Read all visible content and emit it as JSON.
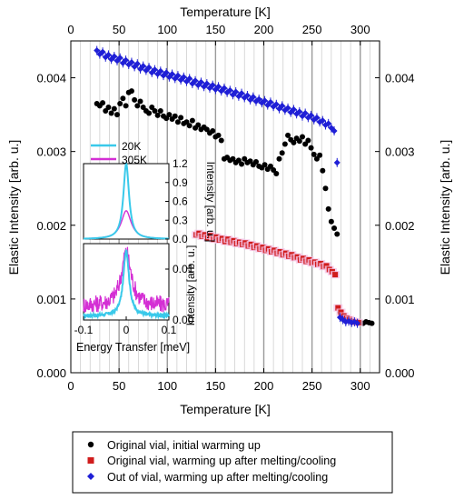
{
  "chart_data": [
    {
      "type": "scatter",
      "title": "",
      "xlabel": "Temperature [K]",
      "x2label": "Temperature [K]",
      "ylabel": "Elastic Intensity [arb. u.]",
      "y2label": "Elastic Intensity [arb. u.]",
      "xlim": [
        0,
        320
      ],
      "ylim": [
        0,
        0.0045
      ],
      "xticks": [
        "0",
        "50",
        "100",
        "150",
        "200",
        "250",
        "300"
      ],
      "yticks": [
        "0.000",
        "0.001",
        "0.002",
        "0.003",
        "0.004"
      ],
      "grid": "vertical lines every 10 K, every 50 K darker",
      "legend_position": "below plot",
      "series": [
        {
          "name": "Original vial, initial warming up",
          "marker": "circle",
          "color": "#000000",
          "points": [
            [
              27,
              0.00365
            ],
            [
              30,
              0.00362
            ],
            [
              33,
              0.00366
            ],
            [
              36,
              0.00355
            ],
            [
              39,
              0.0036
            ],
            [
              42,
              0.00352
            ],
            [
              45,
              0.00358
            ],
            [
              48,
              0.0035
            ],
            [
              51,
              0.00365
            ],
            [
              54,
              0.00372
            ],
            [
              57,
              0.00362
            ],
            [
              60,
              0.0038
            ],
            [
              63,
              0.00382
            ],
            [
              66,
              0.0037
            ],
            [
              69,
              0.00362
            ],
            [
              72,
              0.00368
            ],
            [
              75,
              0.0036
            ],
            [
              78,
              0.00355
            ],
            [
              81,
              0.00352
            ],
            [
              84,
              0.0036
            ],
            [
              87,
              0.00355
            ],
            [
              90,
              0.00349
            ],
            [
              93,
              0.00355
            ],
            [
              96,
              0.00348
            ],
            [
              99,
              0.00345
            ],
            [
              102,
              0.0035
            ],
            [
              105,
              0.00344
            ],
            [
              108,
              0.00348
            ],
            [
              111,
              0.0034
            ],
            [
              114,
              0.00346
            ],
            [
              117,
              0.00338
            ],
            [
              120,
              0.0034
            ],
            [
              123,
              0.00335
            ],
            [
              126,
              0.00342
            ],
            [
              129,
              0.00332
            ],
            [
              132,
              0.00336
            ],
            [
              135,
              0.0033
            ],
            [
              138,
              0.00333
            ],
            [
              141,
              0.0033
            ],
            [
              144,
              0.00325
            ],
            [
              147,
              0.00328
            ],
            [
              150,
              0.0032
            ],
            [
              153,
              0.00322
            ],
            [
              156,
              0.00315
            ],
            [
              159,
              0.0029
            ],
            [
              162,
              0.00292
            ],
            [
              165,
              0.00288
            ],
            [
              168,
              0.0029
            ],
            [
              171,
              0.00285
            ],
            [
              174,
              0.00288
            ],
            [
              177,
              0.00283
            ],
            [
              180,
              0.0029
            ],
            [
              183,
              0.00285
            ],
            [
              186,
              0.00287
            ],
            [
              189,
              0.00282
            ],
            [
              192,
              0.00286
            ],
            [
              195,
              0.0028
            ],
            [
              198,
              0.00278
            ],
            [
              201,
              0.00282
            ],
            [
              204,
              0.00276
            ],
            [
              207,
              0.0028
            ],
            [
              210,
              0.00275
            ],
            [
              213,
              0.0027
            ],
            [
              216,
              0.0029
            ],
            [
              219,
              0.00298
            ],
            [
              222,
              0.0031
            ],
            [
              225,
              0.00322
            ],
            [
              228,
              0.00316
            ],
            [
              231,
              0.00312
            ],
            [
              234,
              0.00318
            ],
            [
              237,
              0.00314
            ],
            [
              240,
              0.0032
            ],
            [
              243,
              0.0031
            ],
            [
              246,
              0.00315
            ],
            [
              249,
              0.00305
            ],
            [
              252,
              0.00296
            ],
            [
              255,
              0.0029
            ],
            [
              258,
              0.00295
            ],
            [
              261,
              0.00274
            ],
            [
              264,
              0.0025
            ],
            [
              267,
              0.00222
            ],
            [
              270,
              0.00205
            ],
            [
              273,
              0.00196
            ],
            [
              276,
              0.00188
            ],
            [
              279,
              0.00082
            ],
            [
              282,
              0.00077
            ],
            [
              285,
              0.00072
            ],
            [
              288,
              0.00071
            ],
            [
              291,
              0.0007
            ],
            [
              294,
              0.0007
            ],
            [
              297,
              0.00069
            ],
            [
              300,
              0.00068
            ],
            [
              303,
              0.00067
            ],
            [
              306,
              0.00069
            ],
            [
              309,
              0.00068
            ],
            [
              312,
              0.00067
            ]
          ]
        },
        {
          "name": "Original vial, warming up after melting/cooling",
          "marker": "square",
          "color": "#d01c1c",
          "points": [
            [
              130,
              0.00187
            ],
            [
              133,
              0.00189
            ],
            [
              136,
              0.00185
            ],
            [
              139,
              0.00187
            ],
            [
              142,
              0.00183
            ],
            [
              145,
              0.00186
            ],
            [
              148,
              0.00181
            ],
            [
              151,
              0.00184
            ],
            [
              154,
              0.0018
            ],
            [
              157,
              0.00182
            ],
            [
              160,
              0.00178
            ],
            [
              163,
              0.00181
            ],
            [
              166,
              0.00177
            ],
            [
              169,
              0.00179
            ],
            [
              172,
              0.00175
            ],
            [
              175,
              0.00177
            ],
            [
              178,
              0.00174
            ],
            [
              181,
              0.00176
            ],
            [
              184,
              0.00172
            ],
            [
              187,
              0.00174
            ],
            [
              190,
              0.0017
            ],
            [
              193,
              0.00172
            ],
            [
              196,
              0.00168
            ],
            [
              199,
              0.0017
            ],
            [
              202,
              0.00166
            ],
            [
              205,
              0.00168
            ],
            [
              208,
              0.00164
            ],
            [
              211,
              0.00166
            ],
            [
              214,
              0.00162
            ],
            [
              217,
              0.00164
            ],
            [
              220,
              0.0016
            ],
            [
              223,
              0.00162
            ],
            [
              226,
              0.00158
            ],
            [
              229,
              0.0016
            ],
            [
              232,
              0.00156
            ],
            [
              235,
              0.00157
            ],
            [
              238,
              0.00153
            ],
            [
              241,
              0.00155
            ],
            [
              244,
              0.00151
            ],
            [
              247,
              0.00153
            ],
            [
              250,
              0.00149
            ],
            [
              253,
              0.0015
            ],
            [
              256,
              0.00147
            ],
            [
              259,
              0.00148
            ],
            [
              262,
              0.00144
            ],
            [
              265,
              0.00145
            ],
            [
              268,
              0.0014
            ],
            [
              271,
              0.00137
            ],
            [
              274,
              0.00133
            ],
            [
              277,
              0.00088
            ],
            [
              280,
              0.00082
            ],
            [
              283,
              0.00077
            ],
            [
              286,
              0.00074
            ],
            [
              289,
              0.00072
            ],
            [
              292,
              0.0007
            ],
            [
              295,
              0.00069
            ],
            [
              298,
              0.00068
            ]
          ]
        },
        {
          "name": "Out of vial, warming up after melting/cooling",
          "marker": "diamond",
          "color": "#1f1fd6",
          "points": [
            [
              27,
              0.00437
            ],
            [
              30,
              0.00432
            ],
            [
              33,
              0.00435
            ],
            [
              36,
              0.00428
            ],
            [
              39,
              0.00431
            ],
            [
              42,
              0.00425
            ],
            [
              45,
              0.00429
            ],
            [
              48,
              0.00423
            ],
            [
              51,
              0.00427
            ],
            [
              54,
              0.0042
            ],
            [
              57,
              0.00424
            ],
            [
              60,
              0.00418
            ],
            [
              63,
              0.00421
            ],
            [
              66,
              0.00415
            ],
            [
              69,
              0.00419
            ],
            [
              72,
              0.00412
            ],
            [
              75,
              0.00416
            ],
            [
              78,
              0.0041
            ],
            [
              81,
              0.00414
            ],
            [
              84,
              0.00407
            ],
            [
              87,
              0.00411
            ],
            [
              90,
              0.00405
            ],
            [
              93,
              0.00409
            ],
            [
              96,
              0.00403
            ],
            [
              99,
              0.00407
            ],
            [
              102,
              0.00401
            ],
            [
              105,
              0.00405
            ],
            [
              108,
              0.00399
            ],
            [
              111,
              0.00403
            ],
            [
              114,
              0.00397
            ],
            [
              117,
              0.00401
            ],
            [
              120,
              0.00395
            ],
            [
              123,
              0.00399
            ],
            [
              126,
              0.00392
            ],
            [
              129,
              0.00396
            ],
            [
              132,
              0.0039
            ],
            [
              135,
              0.00394
            ],
            [
              138,
              0.00388
            ],
            [
              141,
              0.00392
            ],
            [
              144,
              0.00386
            ],
            [
              147,
              0.0039
            ],
            [
              150,
              0.00384
            ],
            [
              153,
              0.00388
            ],
            [
              156,
              0.00382
            ],
            [
              159,
              0.00386
            ],
            [
              162,
              0.0038
            ],
            [
              165,
              0.00383
            ],
            [
              168,
              0.00377
            ],
            [
              171,
              0.00381
            ],
            [
              174,
              0.00375
            ],
            [
              177,
              0.00379
            ],
            [
              180,
              0.00373
            ],
            [
              183,
              0.00376
            ],
            [
              186,
              0.0037
            ],
            [
              189,
              0.00374
            ],
            [
              192,
              0.00368
            ],
            [
              195,
              0.00371
            ],
            [
              198,
              0.00366
            ],
            [
              201,
              0.00369
            ],
            [
              204,
              0.00363
            ],
            [
              207,
              0.00367
            ],
            [
              210,
              0.00361
            ],
            [
              213,
              0.00364
            ],
            [
              216,
              0.00358
            ],
            [
              219,
              0.00362
            ],
            [
              222,
              0.00356
            ],
            [
              225,
              0.00359
            ],
            [
              228,
              0.00353
            ],
            [
              231,
              0.00357
            ],
            [
              234,
              0.00351
            ],
            [
              237,
              0.00354
            ],
            [
              240,
              0.00348
            ],
            [
              243,
              0.00352
            ],
            [
              246,
              0.00346
            ],
            [
              249,
              0.00349
            ],
            [
              252,
              0.00343
            ],
            [
              255,
              0.00346
            ],
            [
              258,
              0.0034
            ],
            [
              261,
              0.00342
            ],
            [
              264,
              0.00336
            ],
            [
              267,
              0.00338
            ],
            [
              270,
              0.00332
            ],
            [
              273,
              0.00328
            ],
            [
              276,
              0.00285
            ],
            [
              279,
              0.00075
            ],
            [
              282,
              0.00072
            ],
            [
              285,
              0.00069
            ],
            [
              288,
              0.0007
            ],
            [
              291,
              0.00068
            ],
            [
              294,
              0.00069
            ],
            [
              297,
              0.00067
            ]
          ]
        }
      ]
    },
    {
      "type": "line",
      "title": "",
      "xlabel": "Energy Transfer [meV]",
      "ylabel": "Intensity [arb. u.]",
      "ylabel_lower": "Intensity [arb. u.]",
      "xlim": [
        -0.1,
        0.1
      ],
      "xticks": [
        "-0.1",
        "0",
        "0.1"
      ],
      "ylim_upper": [
        0,
        1.2
      ],
      "yticks_upper": [
        "0.0",
        "0.3",
        "0.6",
        "0.9",
        "1.2"
      ],
      "ylim_lower": [
        0,
        0.015
      ],
      "yticks_lower": [
        "0.00",
        "0.01"
      ],
      "legend_position": "top",
      "series": [
        {
          "name": "20K",
          "color": "#39c9ea",
          "peak_upper": 1.2,
          "peak_lower": 0.013,
          "width": 0.008,
          "baseline": 0.0008
        },
        {
          "name": "305K",
          "color": "#d42fd4",
          "peak_upper": 0.45,
          "peak_lower": 0.0105,
          "width": 0.014,
          "baseline": 0.0028
        }
      ]
    }
  ]
}
